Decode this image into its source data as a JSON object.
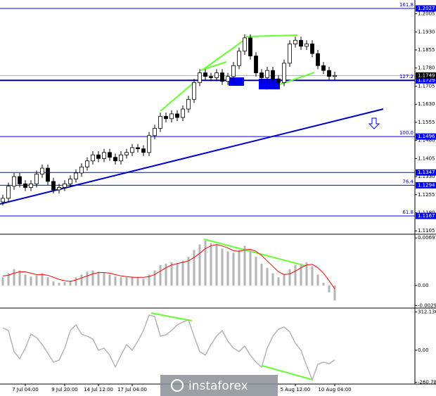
{
  "chart_data": {
    "type": "candlestick",
    "categories": [
      null,
      null,
      null,
      null,
      "7 Jul 04:00",
      null,
      null,
      null,
      null,
      null,
      null,
      "9 Jul 20:00",
      null,
      null,
      null,
      null,
      null,
      "14 Jul 12:00",
      null,
      null,
      null,
      null,
      null,
      "17 Jul 04:00",
      null,
      null,
      null,
      null,
      null,
      null,
      null,
      null,
      null,
      null,
      null,
      null,
      null,
      null,
      null,
      null,
      null,
      null,
      null,
      null,
      null,
      null,
      null,
      null,
      null,
      null,
      null,
      null,
      "5 Aug 12:00",
      null,
      null,
      null,
      null,
      null,
      null,
      "10 Aug 04:00"
    ],
    "candles": [
      [
        1.1225,
        1.1255,
        1.121,
        1.124
      ],
      [
        1.124,
        1.1305,
        1.1225,
        1.129
      ],
      [
        1.129,
        1.1345,
        1.1275,
        1.133
      ],
      [
        1.133,
        1.1345,
        1.1285,
        1.13
      ],
      [
        1.13,
        1.1315,
        1.127,
        1.1285
      ],
      [
        1.1285,
        1.1315,
        1.127,
        1.13
      ],
      [
        1.13,
        1.1355,
        1.1285,
        1.134
      ],
      [
        1.134,
        1.138,
        1.1325,
        1.1365
      ],
      [
        1.1365,
        1.138,
        1.1295,
        1.131
      ],
      [
        1.131,
        1.1325,
        1.126,
        1.1275
      ],
      [
        1.1275,
        1.13,
        1.126,
        1.1285
      ],
      [
        1.1285,
        1.1315,
        1.127,
        1.13
      ],
      [
        1.13,
        1.1335,
        1.1285,
        1.132
      ],
      [
        1.132,
        1.136,
        1.1305,
        1.1345
      ],
      [
        1.1345,
        1.1385,
        1.133,
        1.137
      ],
      [
        1.137,
        1.141,
        1.1355,
        1.1395
      ],
      [
        1.1395,
        1.1435,
        1.138,
        1.142
      ],
      [
        1.142,
        1.1435,
        1.139,
        1.1405
      ],
      [
        1.1405,
        1.1445,
        1.139,
        1.143
      ],
      [
        1.143,
        1.1445,
        1.1395,
        1.141
      ],
      [
        1.141,
        1.1425,
        1.138,
        1.1395
      ],
      [
        1.1395,
        1.1435,
        1.138,
        1.142
      ],
      [
        1.142,
        1.1445,
        1.1405,
        1.143
      ],
      [
        1.143,
        1.1465,
        1.1415,
        1.145
      ],
      [
        1.145,
        1.1465,
        1.143,
        1.1445
      ],
      [
        1.1445,
        1.146,
        1.1415,
        1.143
      ],
      [
        1.143,
        1.1515,
        1.1415,
        1.15
      ],
      [
        1.15,
        1.1545,
        1.1485,
        1.153
      ],
      [
        1.153,
        1.1595,
        1.1515,
        1.158
      ],
      [
        1.158,
        1.1595,
        1.1555,
        1.157
      ],
      [
        1.157,
        1.1605,
        1.1555,
        1.159
      ],
      [
        1.159,
        1.1605,
        1.156,
        1.1575
      ],
      [
        1.1575,
        1.1625,
        1.156,
        1.161
      ],
      [
        1.161,
        1.1665,
        1.1595,
        1.165
      ],
      [
        1.165,
        1.1735,
        1.1635,
        1.172
      ],
      [
        1.172,
        1.1775,
        1.1705,
        1.176
      ],
      [
        1.176,
        1.1775,
        1.173,
        1.1745
      ],
      [
        1.1745,
        1.176,
        1.1725,
        1.174
      ],
      [
        1.174,
        1.1775,
        1.1725,
        1.176
      ],
      [
        1.176,
        1.1775,
        1.171,
        1.1725
      ],
      [
        1.1725,
        1.176,
        1.171,
        1.1745
      ],
      [
        1.1745,
        1.1805,
        1.173,
        1.179
      ],
      [
        1.179,
        1.1865,
        1.1775,
        1.185
      ],
      [
        1.185,
        1.192,
        1.1835,
        1.1905
      ],
      [
        1.1905,
        1.192,
        1.1815,
        1.183
      ],
      [
        1.183,
        1.1845,
        1.1745,
        1.176
      ],
      [
        1.176,
        1.1775,
        1.1725,
        1.174
      ],
      [
        1.174,
        1.1785,
        1.1725,
        1.177
      ],
      [
        1.177,
        1.1785,
        1.172,
        1.1735
      ],
      [
        1.1735,
        1.175,
        1.1705,
        1.172
      ],
      [
        1.172,
        1.1815,
        1.1705,
        1.18
      ],
      [
        1.18,
        1.1895,
        1.1785,
        1.188
      ],
      [
        1.188,
        1.191,
        1.1865,
        1.1895
      ],
      [
        1.1895,
        1.191,
        1.1855,
        1.187
      ],
      [
        1.187,
        1.1895,
        1.1855,
        1.188
      ],
      [
        1.188,
        1.1895,
        1.1825,
        1.184
      ],
      [
        1.184,
        1.1855,
        1.1775,
        1.179
      ],
      [
        1.179,
        1.1805,
        1.1755,
        1.177
      ],
      [
        1.177,
        1.1785,
        1.173,
        1.1745
      ],
      [
        1.1745,
        1.1765,
        1.173,
        1.1749
      ]
    ],
    "ylim": [
      1.1094,
      1.2062
    ],
    "yticks": [
      1.2005,
      {
        "value": 1.193,
        "label": "1.1930"
      },
      1.1855,
      {
        "value": 1.178,
        "label": "1.1780"
      },
      1.1705,
      {
        "value": 1.163,
        "label": "1.1630"
      },
      1.1555,
      {
        "value": 1.148,
        "label": "1.1480"
      },
      1.1405,
      {
        "value": 1.133,
        "label": "1.1330"
      },
      1.1255,
      {
        "value": 1.118,
        "label": "1.1180"
      },
      1.1105
    ],
    "levels": [
      {
        "value": 1.2027,
        "fib": "161.8"
      },
      {
        "value": 1.1729,
        "fib": "127.2"
      },
      {
        "value": 1.1496,
        "fib": "100.0"
      },
      {
        "value": 1.1347
      },
      {
        "value": 1.1294,
        "fib": "76.4"
      },
      {
        "value": 1.1167,
        "fib": "61.8"
      }
    ],
    "last": 1.1749,
    "osma": {
      "values": [
        0.0012,
        0.0018,
        0.0024,
        0.0022,
        0.0016,
        0.0013,
        0.0015,
        0.0018,
        0.0012,
        0.0006,
        0.0004,
        0.0005,
        0.0007,
        0.0012,
        0.0016,
        0.002,
        0.0022,
        0.002,
        0.0019,
        0.0016,
        0.0013,
        0.0012,
        0.0012,
        0.0013,
        0.0012,
        0.001,
        0.0016,
        0.0022,
        0.003,
        0.0032,
        0.0034,
        0.0033,
        0.0036,
        0.0042,
        0.0052,
        0.006,
        0.0066,
        0.0062,
        0.006,
        0.0054,
        0.005,
        0.0048,
        0.0052,
        0.0058,
        0.0052,
        0.0042,
        0.0032,
        0.0026,
        0.0018,
        0.0012,
        0.0016,
        0.0024,
        0.003,
        0.0032,
        0.0034,
        0.0028,
        0.0016,
        0.0004,
        -0.001,
        -0.0022
      ],
      "signal": [
        0.0014,
        0.0015,
        0.0018,
        0.002,
        0.002,
        0.0018,
        0.0016,
        0.0016,
        0.0015,
        0.0012,
        0.0009,
        0.0007,
        0.0006,
        0.0008,
        0.0011,
        0.0014,
        0.0017,
        0.0019,
        0.0019,
        0.0018,
        0.0016,
        0.0014,
        0.0013,
        0.0012,
        0.0012,
        0.0012,
        0.0013,
        0.0016,
        0.0021,
        0.0026,
        0.003,
        0.0032,
        0.0034,
        0.0036,
        0.0041,
        0.0047,
        0.0054,
        0.0058,
        0.006,
        0.0058,
        0.0055,
        0.0051,
        0.005,
        0.0052,
        0.0053,
        0.005,
        0.0044,
        0.0036,
        0.0028,
        0.002,
        0.0016,
        0.0017,
        0.0021,
        0.0026,
        0.003,
        0.0031,
        0.0026,
        0.0018,
        0.0007,
        -0.0005
      ],
      "ylim": [
        -0.0032,
        0.0074
      ],
      "yticks": [
        0.00697,
        {
          "value": 0,
          "label": "0.00"
        },
        -0.00292
      ]
    },
    "cci": {
      "values": [
        183,
        160,
        -11,
        -69,
        17,
        131,
        103,
        46,
        -23,
        -97,
        -80,
        17,
        160,
        206,
        131,
        114,
        91,
        0,
        17,
        -40,
        -137,
        -40,
        46,
        0,
        74,
        160,
        286,
        274,
        114,
        126,
        160,
        206,
        229,
        246,
        114,
        -11,
        -40,
        46,
        114,
        160,
        74,
        17,
        -11,
        34,
        -40,
        -97,
        -137,
        17,
        114,
        171,
        189,
        149,
        57,
        0,
        -126,
        -240,
        -114,
        -97,
        -109,
        -80
      ],
      "ylim": [
        -269,
        337
      ],
      "yticks": [
        312.1363,
        {
          "value": 0,
          "label": "0.00"
        },
        {
          "value": -260.782,
          "label": "-260.7820"
        }
      ]
    },
    "watermark": "instaforex"
  }
}
